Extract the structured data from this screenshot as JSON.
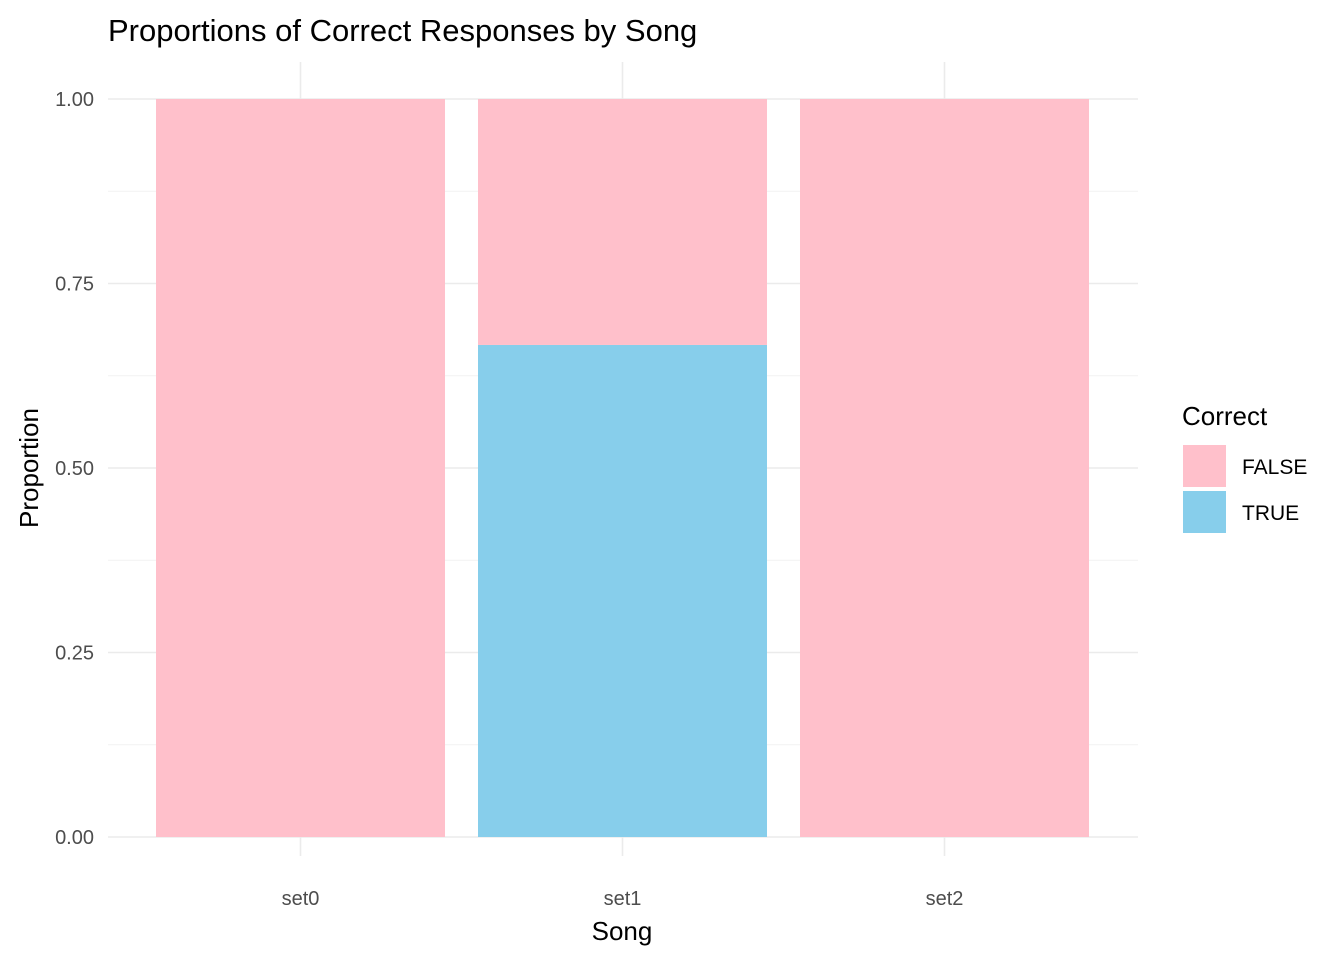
{
  "chart_data": {
    "type": "bar",
    "stacked": true,
    "title": "Proportions of Correct Responses by Song",
    "xlabel": "Song",
    "ylabel": "Proportion",
    "categories": [
      "set0",
      "set1",
      "set2"
    ],
    "series": [
      {
        "name": "FALSE",
        "color": "#FFC0CB",
        "values": [
          1.0,
          0.3333,
          1.0
        ]
      },
      {
        "name": "TRUE",
        "color": "#87CEEB",
        "values": [
          0.0,
          0.6667,
          0.0
        ]
      }
    ],
    "ylim": [
      0,
      1
    ],
    "yticks": [
      0.0,
      0.25,
      0.5,
      0.75,
      1.0
    ],
    "ytick_labels": [
      "0.00",
      "0.25",
      "0.50",
      "0.75",
      "1.00"
    ],
    "grid": true,
    "legend": {
      "title": "Correct",
      "position": "right",
      "entries": [
        {
          "label": "FALSE",
          "color": "#FFC0CB"
        },
        {
          "label": "TRUE",
          "color": "#87CEEB"
        }
      ]
    }
  }
}
